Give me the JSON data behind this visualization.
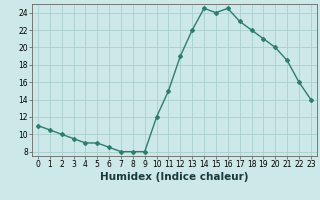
{
  "x": [
    0,
    1,
    2,
    3,
    4,
    5,
    6,
    7,
    8,
    9,
    10,
    11,
    12,
    13,
    14,
    15,
    16,
    17,
    18,
    19,
    20,
    21,
    22,
    23
  ],
  "y": [
    11,
    10.5,
    10,
    9.5,
    9,
    9,
    8.5,
    8,
    8,
    8,
    12,
    15,
    19,
    22,
    24.5,
    24,
    24.5,
    23,
    22,
    21,
    20,
    18.5,
    16,
    14
  ],
  "line_color": "#2e7d6e",
  "marker": "D",
  "marker_size": 2.0,
  "bg_color": "#cce8e8",
  "grid_color": "#aacece",
  "xlabel": "Humidex (Indice chaleur)",
  "xlim": [
    -0.5,
    23.5
  ],
  "ylim": [
    7.5,
    25
  ],
  "yticks": [
    8,
    10,
    12,
    14,
    16,
    18,
    20,
    22,
    24
  ],
  "xticks": [
    0,
    1,
    2,
    3,
    4,
    5,
    6,
    7,
    8,
    9,
    10,
    11,
    12,
    13,
    14,
    15,
    16,
    17,
    18,
    19,
    20,
    21,
    22,
    23
  ],
  "tick_fontsize": 5.5,
  "xlabel_fontsize": 7.5,
  "linewidth": 1.0
}
